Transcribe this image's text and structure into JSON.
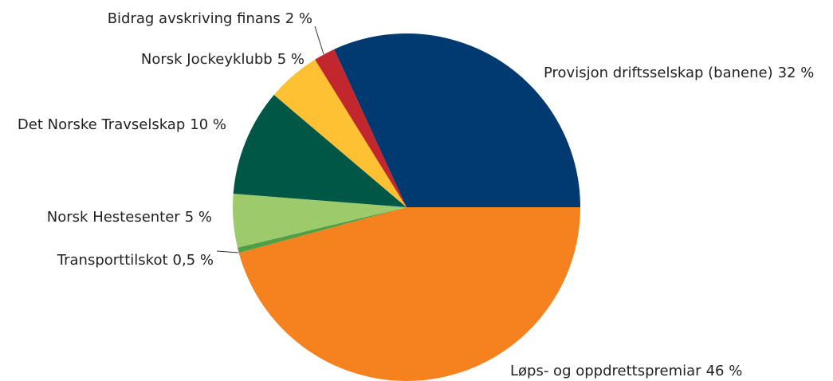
{
  "chart_data": {
    "type": "pie",
    "categories": [
      "Løps- og oppdrettspremiar",
      "Transporttilskot",
      "Norsk Hestesenter",
      "Det Norske Travselskap",
      "Norsk Jockeyklubb",
      "Bidrag avskriving finans",
      "Provisjon driftsselskap (banene)"
    ],
    "values": [
      46,
      0.5,
      5,
      10,
      5,
      2,
      32
    ],
    "value_labels": [
      "46 %",
      "0,5 %",
      "5 %",
      "10 %",
      "5 %",
      "2 %",
      "32 %"
    ],
    "colors": [
      "#f5821f",
      "#4f9f45",
      "#9dcb6c",
      "#005745",
      "#fdc133",
      "#c1272d",
      "#003a70"
    ]
  }
}
